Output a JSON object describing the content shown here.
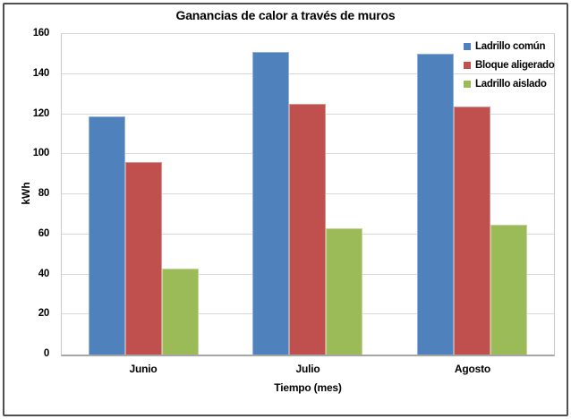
{
  "window": {
    "background": "#ffffff",
    "frame_border_color": "#4f4f4f"
  },
  "chart_data": {
    "type": "bar",
    "title": "Ganancias de calor a través de muros",
    "xlabel": "Tiempo (mes)",
    "ylabel": "kWh",
    "categories": [
      "Junio",
      "Julio",
      "Agosto"
    ],
    "series": [
      {
        "name": "Ladrillo común",
        "color": "#4F81BD",
        "edge_color": "#95B3D7",
        "values": [
          119,
          151,
          150
        ]
      },
      {
        "name": "Bloque aligerado",
        "color": "#C0504D",
        "edge_color": "#D99694",
        "values": [
          96,
          125,
          124
        ]
      },
      {
        "name": "Ladrillo aislado",
        "color": "#9BBB59",
        "edge_color": "#C3D69B",
        "values": [
          43,
          63,
          65
        ]
      }
    ],
    "ylim": [
      0,
      160
    ],
    "ytick_step": 20,
    "yticks": [
      0,
      20,
      40,
      60,
      80,
      100,
      120,
      140,
      160
    ],
    "grid": true,
    "gridline_color": "#d9d9d9",
    "axis_line_color": "#a6a6a6",
    "plot_border_color": "#c9c9c9",
    "text_color": "#000000",
    "legend_position": "top-right"
  }
}
